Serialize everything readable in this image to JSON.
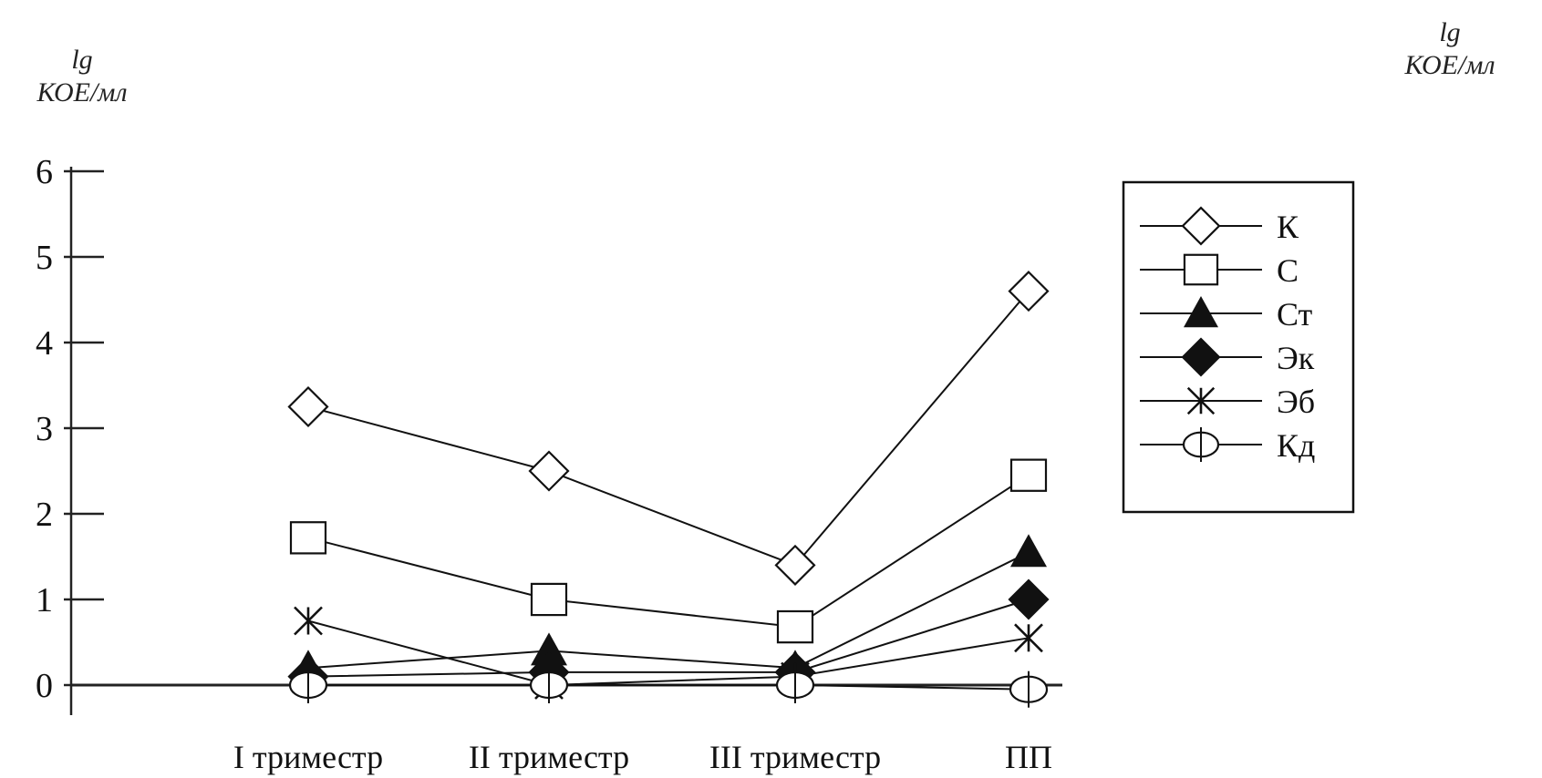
{
  "unit_label": {
    "line1": "lg",
    "line2": "КОЕ/мл"
  },
  "chart_data": {
    "type": "line",
    "title": "",
    "xlabel": "",
    "ylabel": "lg КОЕ/мл",
    "ylim": [
      0,
      6
    ],
    "yticks": [
      0,
      1,
      2,
      3,
      4,
      5,
      6
    ],
    "categories": [
      "I триместр",
      "II триместр",
      "III триместр",
      "ПП"
    ],
    "grid": false,
    "legend_position": "right",
    "series": [
      {
        "name": "К",
        "marker": "diamond-open",
        "values": [
          3.25,
          2.5,
          1.4,
          4.6
        ]
      },
      {
        "name": "С",
        "marker": "square-open",
        "values": [
          1.72,
          1.0,
          0.68,
          2.45
        ]
      },
      {
        "name": "Ст",
        "marker": "triangle-filled",
        "values": [
          0.2,
          0.4,
          0.2,
          1.55
        ]
      },
      {
        "name": "Эк",
        "marker": "diamond-filled",
        "values": [
          0.1,
          0.15,
          0.15,
          1.0
        ]
      },
      {
        "name": "Эб",
        "marker": "asterisk",
        "values": [
          0.75,
          0.0,
          0.1,
          0.55
        ]
      },
      {
        "name": "Кд",
        "marker": "ellipse-open",
        "values": [
          0.0,
          0.0,
          0.0,
          -0.05
        ]
      }
    ]
  }
}
